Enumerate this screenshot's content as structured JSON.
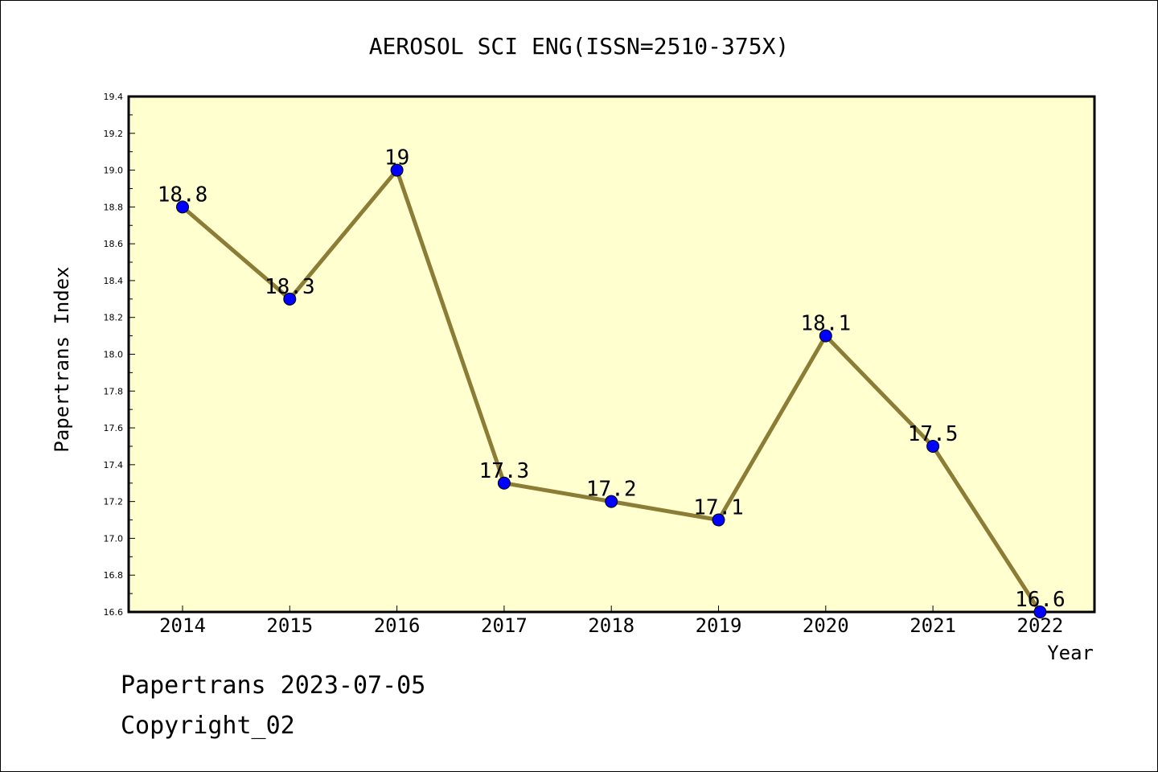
{
  "chart_data": {
    "type": "line",
    "title": "AEROSOL SCI ENG(ISSN=2510-375X)",
    "xlabel": "Year",
    "ylabel": "Papertrans Index",
    "categories": [
      "2014",
      "2015",
      "2016",
      "2017",
      "2018",
      "2019",
      "2020",
      "2021",
      "2022"
    ],
    "series": [
      {
        "values": [
          18.8,
          18.3,
          19.0,
          17.3,
          17.2,
          17.1,
          18.1,
          17.5,
          16.6
        ],
        "labels": [
          "18.8",
          "18.3",
          "19",
          "17.3",
          "17.2",
          "17.1",
          "18.1",
          "17.5",
          "16.6"
        ]
      }
    ],
    "ylim": [
      16.6,
      19.4
    ],
    "yticks": [
      "16.6",
      "16.8",
      "17.0",
      "17.2",
      "17.4",
      "17.6",
      "17.8",
      "18.0",
      "18.2",
      "18.4",
      "18.6",
      "18.8",
      "19.0",
      "19.2",
      "19.4"
    ],
    "grid": false,
    "colors": {
      "plot_background": "#FFFFD0",
      "line": "#8B7D35",
      "marker": "#0000FF"
    }
  },
  "footer": {
    "date_text": "Papertrans 2023-07-05",
    "copyright_text": "Copyright_02"
  }
}
